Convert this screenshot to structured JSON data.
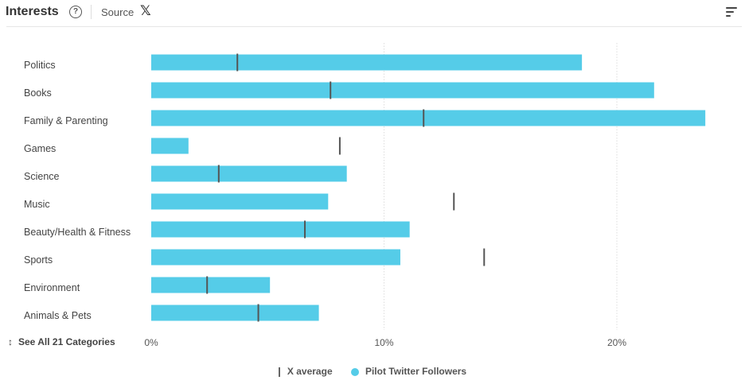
{
  "header": {
    "title": "Interests",
    "help_icon_glyph": "?",
    "source_label": "Source",
    "source_logo": "𝕏"
  },
  "see_all": {
    "arrow": "↕",
    "label": "See All 21 Categories"
  },
  "legend": {
    "average_label": "X average",
    "followers_label": "Pilot Twitter Followers"
  },
  "colors": {
    "bar": "#55cce8",
    "average_marker": "#555555",
    "grid": "#dddddd"
  },
  "chart_data": {
    "type": "bar",
    "orientation": "horizontal",
    "categories": [
      "Politics",
      "Books",
      "Family & Parenting",
      "Games",
      "Science",
      "Music",
      "Beauty/Health & Fitness",
      "Sports",
      "Environment",
      "Animals & Pets"
    ],
    "series": [
      {
        "name": "Pilot Twitter Followers",
        "values": [
          18.5,
          21.6,
          23.8,
          1.6,
          8.4,
          7.6,
          11.1,
          10.7,
          5.1,
          7.2
        ]
      },
      {
        "name": "X average",
        "values": [
          3.7,
          7.7,
          11.7,
          8.1,
          2.9,
          13.0,
          6.6,
          14.3,
          2.4,
          4.6
        ]
      }
    ],
    "x_ticks": [
      "0%",
      "10%",
      "20%"
    ],
    "xlim": [
      0,
      25
    ],
    "grid": true,
    "legend_position": "bottom"
  }
}
